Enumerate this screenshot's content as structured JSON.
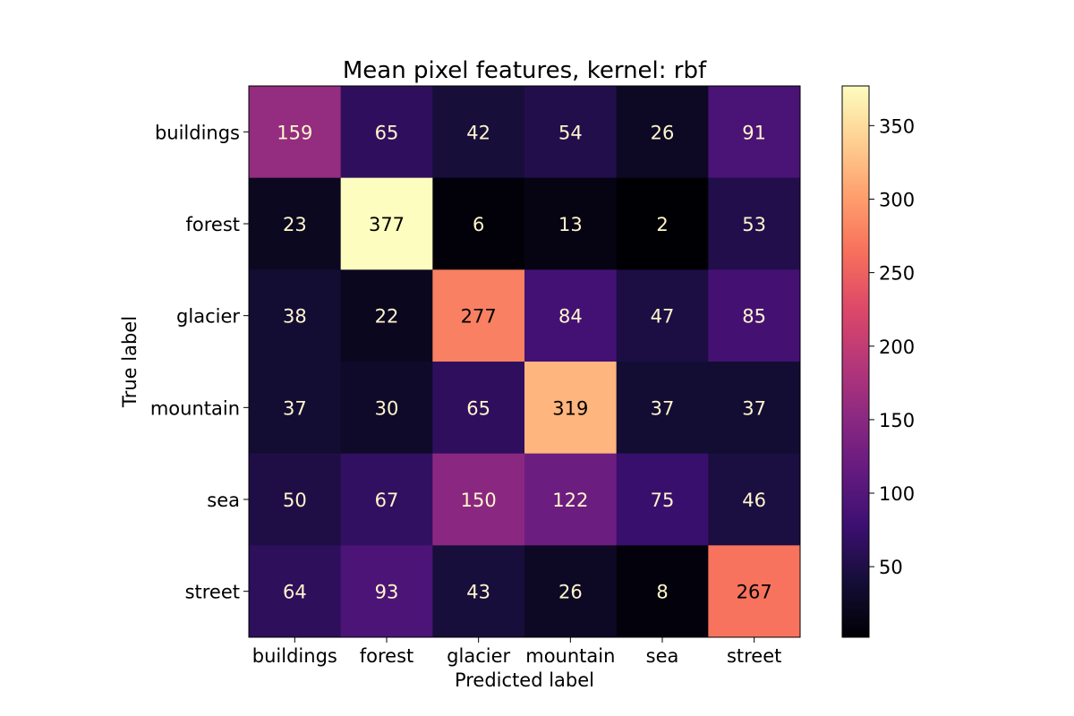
{
  "chart_data": {
    "type": "heatmap",
    "title": "Mean pixel features, kernel: rbf",
    "xlabel": "Predicted label",
    "ylabel": "True label",
    "x_categories": [
      "buildings",
      "forest",
      "glacier",
      "mountain",
      "sea",
      "street"
    ],
    "y_categories": [
      "buildings",
      "forest",
      "glacier",
      "mountain",
      "sea",
      "street"
    ],
    "values": [
      [
        159,
        65,
        42,
        54,
        26,
        91
      ],
      [
        23,
        377,
        6,
        13,
        2,
        53
      ],
      [
        38,
        22,
        277,
        84,
        47,
        85
      ],
      [
        37,
        30,
        65,
        319,
        37,
        37
      ],
      [
        50,
        67,
        150,
        122,
        75,
        46
      ],
      [
        64,
        93,
        43,
        26,
        8,
        267
      ]
    ],
    "colormap": "magma",
    "value_range": [
      2,
      377
    ],
    "colorbar_ticks": [
      50,
      100,
      150,
      200,
      250,
      300,
      350
    ],
    "text_color_dark_cells": "#fff5cc",
    "text_color_light_cells": "#000000",
    "grid": false
  }
}
